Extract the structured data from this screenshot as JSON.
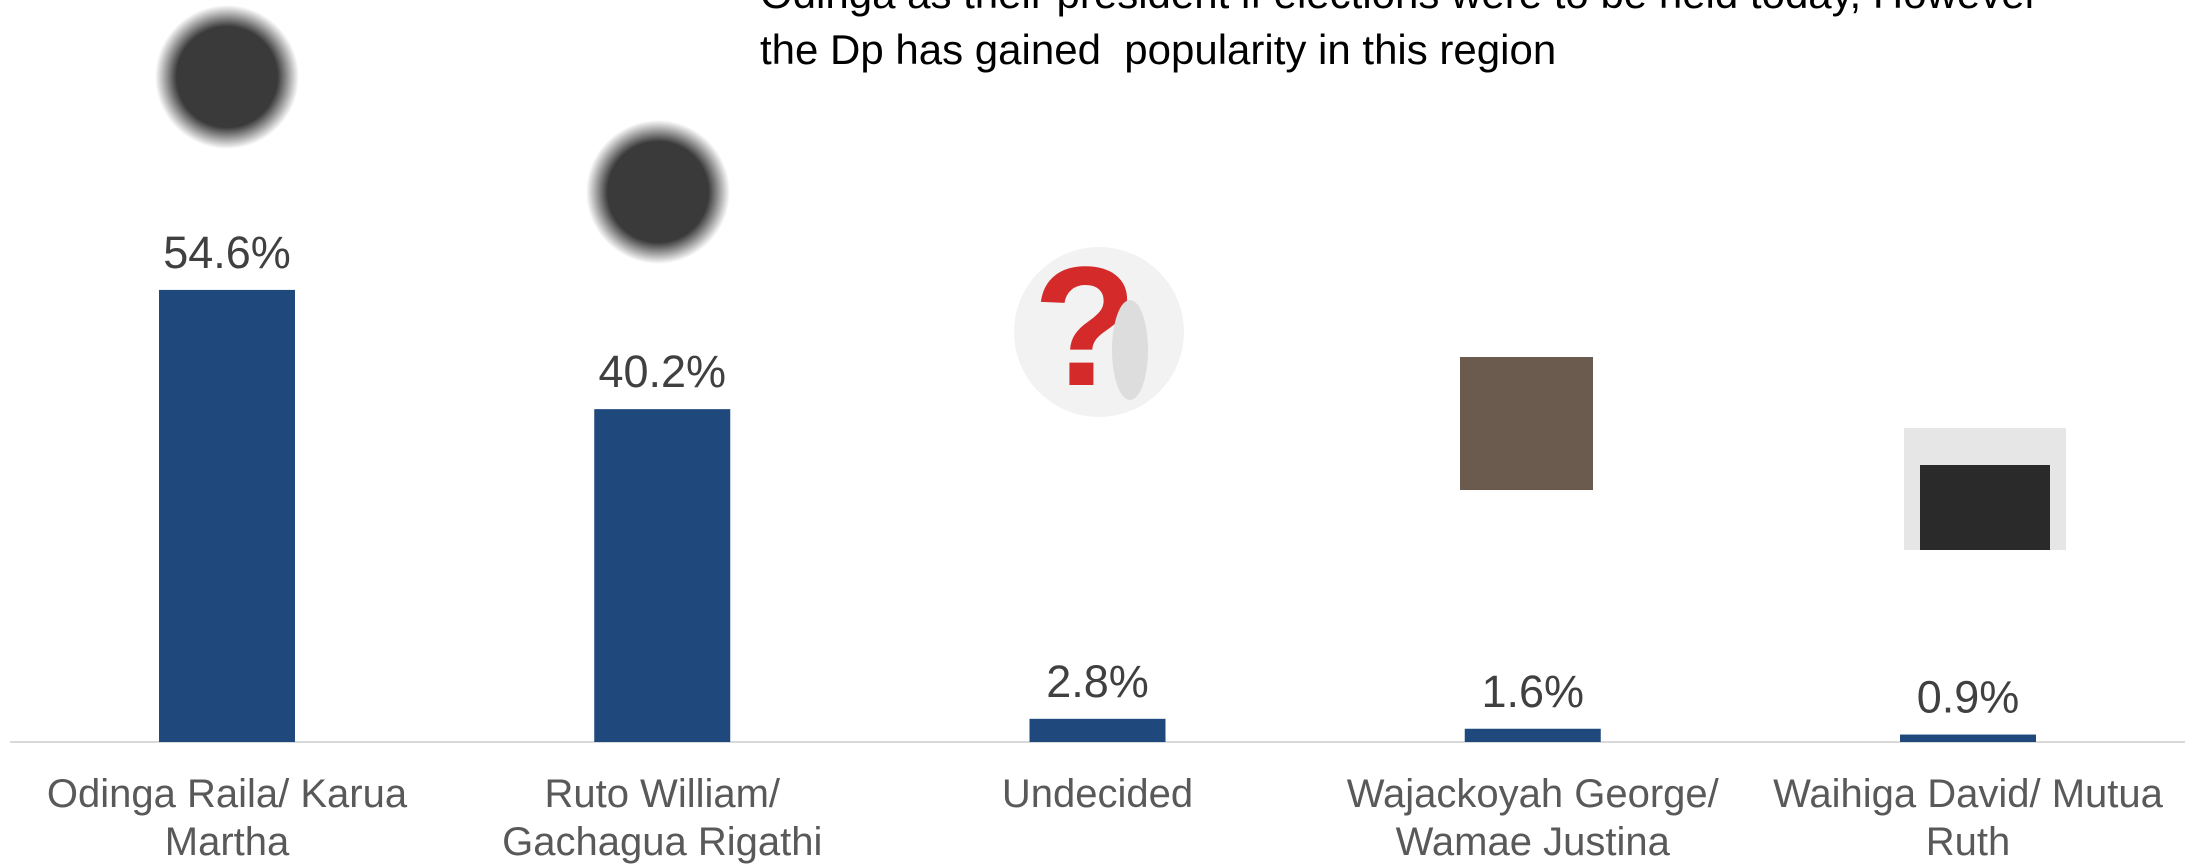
{
  "chart_data": {
    "type": "bar",
    "title": [
      "Odinga as their president if elections were to be held today, However",
      "the Dp has gained  popularity in this region"
    ],
    "categories": [
      "Odinga Raila/ Karua Martha",
      "Ruto William/ Gachagua Rigathi",
      "Undecided",
      "Wajackoyah George/ Wamae Justina",
      "Waihiga David/ Mutua Ruth"
    ],
    "values": [
      54.6,
      40.2,
      2.8,
      1.6,
      0.9
    ],
    "value_labels": [
      "54.6%",
      "40.2%",
      "2.8%",
      "1.6%",
      "0.9%"
    ],
    "color": "#1f497d"
  }
}
